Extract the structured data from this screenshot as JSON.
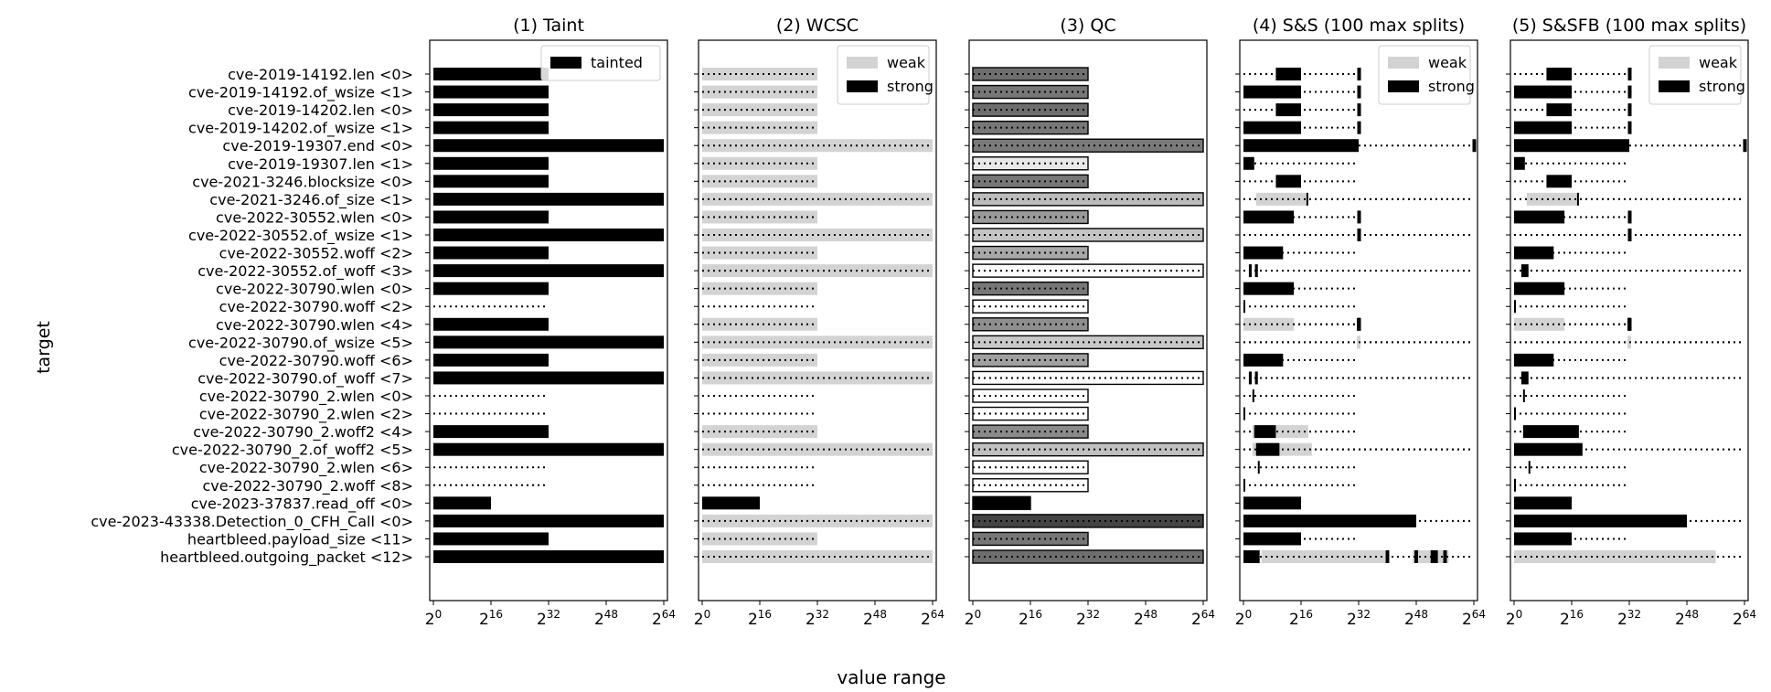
{
  "chart_data": {
    "type": "bar",
    "ylabel": "target",
    "xlabel": "value range",
    "x_scale": "log2",
    "xlim_log2": [
      0,
      64
    ],
    "xticks_log2": [
      0,
      16,
      32,
      48,
      64
    ],
    "xtick_labels": [
      "2^0",
      "2^16",
      "2^32",
      "2^48",
      "2^64"
    ],
    "categories": [
      "cve-2019-14192.len <0>",
      "cve-2019-14192.of_wsize <1>",
      "cve-2019-14202.len <0>",
      "cve-2019-14202.of_wsize <1>",
      "cve-2019-19307.end <0>",
      "cve-2019-19307.len <1>",
      "cve-2021-3246.blocksize <0>",
      "cve-2021-3246.of_size <1>",
      "cve-2022-30552.wlen <0>",
      "cve-2022-30552.of_wsize <1>",
      "cve-2022-30552.woff <2>",
      "cve-2022-30552.of_woff <3>",
      "cve-2022-30790.wlen <0>",
      "cve-2022-30790.woff <2>",
      "cve-2022-30790.wlen <4>",
      "cve-2022-30790.of_wsize <5>",
      "cve-2022-30790.woff <6>",
      "cve-2022-30790.of_woff <7>",
      "cve-2022-30790_2.wlen <0>",
      "cve-2022-30790_2.wlen <2>",
      "cve-2022-30790_2.woff2 <4>",
      "cve-2022-30790_2.of_woff2 <5>",
      "cve-2022-30790_2.wlen <6>",
      "cve-2022-30790_2.woff <8>",
      "cve-2023-37837.read_off <0>",
      "cve-2023-43338.Detection_0_CFH_Call <0>",
      "heartbleed.payload_size <11>",
      "heartbleed.outgoing_packet <12>"
    ],
    "panels": [
      {
        "title": "(1) Taint",
        "legend": [
          "tainted"
        ],
        "legend_position": "top-right",
        "declared_bits": [
          32,
          32,
          32,
          32,
          64,
          32,
          32,
          64,
          32,
          64,
          32,
          64,
          32,
          32,
          32,
          64,
          32,
          64,
          32,
          32,
          32,
          64,
          32,
          32,
          16,
          64,
          32,
          64
        ],
        "tainted_bits": [
          32,
          32,
          32,
          32,
          64,
          32,
          32,
          64,
          32,
          64,
          32,
          64,
          32,
          0,
          32,
          64,
          32,
          64,
          0,
          0,
          32,
          64,
          0,
          0,
          16,
          64,
          32,
          64
        ]
      },
      {
        "title": "(2) WCSC",
        "legend": [
          "weak",
          "strong"
        ],
        "legend_position": "top-right",
        "declared_bits": [
          32,
          32,
          32,
          32,
          64,
          32,
          32,
          64,
          32,
          64,
          32,
          64,
          32,
          32,
          32,
          64,
          32,
          64,
          32,
          32,
          32,
          64,
          32,
          32,
          16,
          64,
          32,
          64
        ],
        "weak_bits": [
          32,
          32,
          32,
          32,
          64,
          32,
          32,
          64,
          32,
          64,
          32,
          64,
          32,
          0,
          32,
          64,
          32,
          64,
          0,
          0,
          32,
          64,
          0,
          0,
          0,
          64,
          32,
          64
        ],
        "strong_bits": [
          0,
          0,
          0,
          0,
          0,
          0,
          0,
          0,
          0,
          0,
          0,
          0,
          0,
          0,
          0,
          0,
          0,
          0,
          0,
          0,
          0,
          0,
          0,
          0,
          16,
          0,
          0,
          0
        ]
      },
      {
        "title": "(3) QC",
        "declared_bits": [
          32,
          32,
          32,
          32,
          64,
          32,
          32,
          64,
          32,
          64,
          32,
          64,
          32,
          32,
          32,
          64,
          32,
          64,
          32,
          32,
          32,
          64,
          32,
          32,
          16,
          64,
          32,
          64
        ],
        "bar_bits": [
          32,
          32,
          32,
          32,
          64,
          32,
          32,
          64,
          32,
          64,
          32,
          64,
          32,
          32,
          32,
          64,
          32,
          64,
          32,
          32,
          32,
          64,
          32,
          32,
          16,
          64,
          32,
          64
        ],
        "fill_gray": [
          "#6e6e6e",
          "#777777",
          "#6e6e6e",
          "#777777",
          "#7a7a7a",
          "#e8e8e8",
          "#777777",
          "#bcbcbc",
          "#9a9a9a",
          "#c4c4c4",
          "#a8a8a8",
          "#fafafa",
          "#777777",
          "#ffffff",
          "#8e8e8e",
          "#c8c8c8",
          "#a0a0a0",
          "#fafafa",
          "#ffffff",
          "#ffffff",
          "#8a8a8a",
          "#c0c0c0",
          "#ffffff",
          "#ffffff",
          "#000000",
          "#444444",
          "#777777",
          "#6e6e6e"
        ]
      },
      {
        "title": "(4) S&S (100 max splits)",
        "legend": [
          "weak",
          "strong"
        ],
        "legend_position": "top-right",
        "declared_bits": [
          32,
          32,
          32,
          32,
          64,
          32,
          32,
          64,
          32,
          64,
          32,
          64,
          32,
          32,
          32,
          64,
          32,
          64,
          32,
          32,
          32,
          64,
          32,
          32,
          16,
          64,
          32,
          64
        ],
        "weak_ranges": [
          [],
          [],
          [],
          [],
          [],
          [],
          [],
          [
            [
              3.5,
              18
            ]
          ],
          [],
          [],
          [],
          [],
          [],
          [],
          [
            [
              0,
              14
            ]
          ],
          [
            [
              31.5,
              32.5
            ]
          ],
          [],
          [],
          [],
          [],
          [
            [
              2.5,
              18
            ]
          ],
          [
            [
              2.5,
              19
            ]
          ],
          [],
          [],
          [],
          [],
          [],
          [
            [
              5,
              40
            ],
            [
              47,
              57
            ]
          ]
        ],
        "strong_ranges": [
          [
            [
              9,
              16
            ]
          ],
          [
            [
              0,
              16
            ]
          ],
          [
            [
              9,
              16
            ]
          ],
          [
            [
              0,
              16
            ]
          ],
          [
            [
              0,
              32
            ]
          ],
          [
            [
              0,
              3
            ]
          ],
          [
            [
              9,
              16
            ]
          ],
          [
            [
              17.5,
              18
            ]
          ],
          [
            [
              0,
              14
            ]
          ],
          [
            [
              32,
              32.3
            ]
          ],
          [
            [
              0,
              11
            ]
          ],
          [
            [
              1.5,
              2.3
            ],
            [
              3.2,
              4
            ]
          ],
          [
            [
              0,
              14
            ]
          ],
          [
            [
              0,
              0.5
            ]
          ],
          [
            [
              31.5,
              32.5
            ]
          ],
          [],
          [
            [
              0,
              11
            ]
          ],
          [
            [
              1.5,
              2.3
            ],
            [
              3.2,
              4
            ]
          ],
          [
            [
              2.5,
              3
            ]
          ],
          [
            [
              0,
              0.5
            ]
          ],
          [
            [
              3,
              9
            ]
          ],
          [
            [
              3.5,
              10
            ]
          ],
          [
            [
              4,
              4.5
            ]
          ],
          [
            [
              0,
              0.5
            ]
          ],
          [
            [
              0,
              16
            ]
          ],
          [
            [
              0,
              48
            ]
          ],
          [
            [
              0,
              16
            ]
          ],
          [
            [
              0,
              4.5
            ],
            [
              39.5,
              40.5
            ],
            [
              47.5,
              48.5
            ],
            [
              52,
              54
            ],
            [
              55.5,
              56.5
            ]
          ]
        ],
        "markers_bits": [
          32,
          32,
          32,
          32,
          64,
          null,
          null,
          null,
          32,
          32,
          null,
          null,
          null,
          null,
          32,
          null,
          null,
          null,
          null,
          null,
          null,
          null,
          null,
          null,
          null,
          null,
          null,
          null
        ]
      },
      {
        "title": "(5) S&SFB (100 max splits)",
        "legend": [
          "weak",
          "strong"
        ],
        "legend_position": "top-right",
        "declared_bits": [
          32,
          32,
          32,
          32,
          64,
          32,
          32,
          64,
          32,
          64,
          32,
          64,
          32,
          32,
          32,
          64,
          32,
          64,
          32,
          32,
          32,
          64,
          32,
          32,
          16,
          64,
          32,
          64
        ],
        "weak_ranges": [
          [],
          [],
          [],
          [],
          [],
          [],
          [],
          [
            [
              3.5,
              18
            ]
          ],
          [],
          [],
          [],
          [],
          [],
          [],
          [
            [
              0,
              14
            ]
          ],
          [
            [
              31.5,
              32.5
            ]
          ],
          [],
          [],
          [],
          [],
          [],
          [],
          [],
          [],
          [],
          [],
          [],
          [
            [
              0,
              56
            ]
          ]
        ],
        "strong_ranges": [
          [
            [
              9,
              16
            ]
          ],
          [
            [
              0,
              16
            ]
          ],
          [
            [
              9,
              16
            ]
          ],
          [
            [
              0,
              16
            ]
          ],
          [
            [
              0,
              32
            ]
          ],
          [
            [
              0,
              3
            ]
          ],
          [
            [
              9,
              16
            ]
          ],
          [
            [
              17.5,
              18
            ]
          ],
          [
            [
              0,
              14
            ]
          ],
          [
            [
              32,
              32.3
            ]
          ],
          [
            [
              0,
              11
            ]
          ],
          [
            [
              2,
              4
            ]
          ],
          [
            [
              0,
              14
            ]
          ],
          [
            [
              0,
              0.5
            ]
          ],
          [
            [
              31.5,
              32.5
            ]
          ],
          [],
          [
            [
              0,
              11
            ]
          ],
          [
            [
              2,
              4
            ]
          ],
          [
            [
              2.5,
              3
            ]
          ],
          [
            [
              0,
              0.5
            ]
          ],
          [
            [
              2.5,
              18
            ]
          ],
          [
            [
              0,
              19
            ]
          ],
          [
            [
              4,
              4.5
            ]
          ],
          [
            [
              0,
              0.5
            ]
          ],
          [
            [
              0,
              16
            ]
          ],
          [
            [
              0,
              48
            ]
          ],
          [
            [
              0,
              16
            ]
          ],
          []
        ],
        "markers_bits": [
          32,
          32,
          32,
          32,
          64,
          null,
          null,
          null,
          32,
          32,
          null,
          null,
          null,
          null,
          32,
          null,
          null,
          null,
          null,
          null,
          null,
          null,
          null,
          null,
          null,
          null,
          null,
          null
        ]
      }
    ]
  },
  "colors": {
    "strong": "#000000",
    "weak": "#d3d3d3",
    "axis": "#000000"
  }
}
